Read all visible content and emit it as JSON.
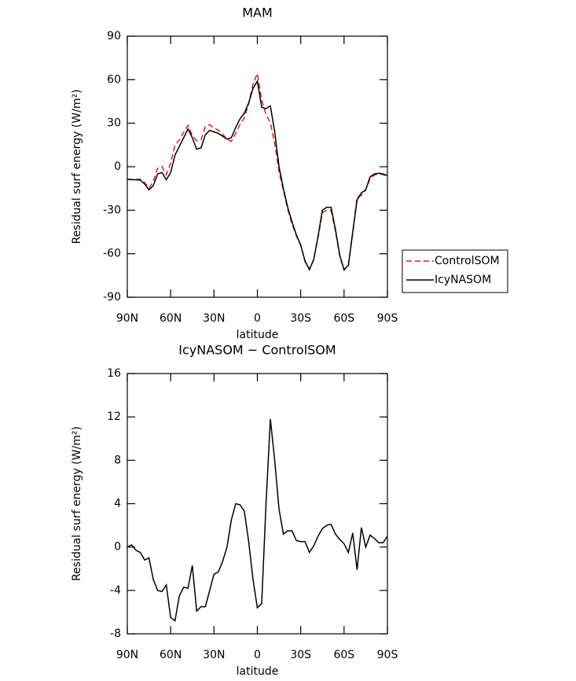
{
  "chart_data": [
    {
      "type": "line",
      "title": "MAM",
      "x_label": "latitude",
      "y_label": "Residual surf energy (W/m²)",
      "x": [
        90,
        87,
        84,
        81,
        78,
        75,
        72,
        69,
        66,
        63,
        60,
        57,
        54,
        51,
        48,
        45,
        42,
        39,
        36,
        33,
        30,
        27,
        24,
        21,
        18,
        15,
        12,
        9,
        6,
        3,
        0,
        -3,
        -6,
        -9,
        -12,
        -15,
        -18,
        -21,
        -24,
        -27,
        -30,
        -33,
        -36,
        -39,
        -42,
        -45,
        -48,
        -51,
        -54,
        -57,
        -60,
        -63,
        -66,
        -69,
        -72,
        -75,
        -78,
        -81,
        -84,
        -87,
        -90
      ],
      "series": [
        {
          "name": "ControlSOM",
          "color": "#e41a1c",
          "line_style": "dashed",
          "values": [
            -8.7,
            -9,
            -8.7,
            -8.7,
            -10.8,
            -15,
            -10,
            -1,
            0.1,
            -5.5,
            2.5,
            14.8,
            18.5,
            23.7,
            28.5,
            21.7,
            17.9,
            18.5,
            27.5,
            29,
            26.5,
            25.3,
            22.3,
            19,
            17.5,
            23,
            29.1,
            33.7,
            43.5,
            57,
            64.3,
            46.2,
            36,
            30.2,
            16,
            -3.5,
            -16.2,
            -29.5,
            -39.5,
            -47.6,
            -54.5,
            -65.5,
            -70.5,
            -64.1,
            -49,
            -31.7,
            -30,
            -30.1,
            -44.2,
            -61.7,
            -71.3,
            -67.5,
            -46.3,
            -20.9,
            -19.8,
            -16,
            -8.1,
            -5.8,
            -4.9,
            -5.4,
            -7
          ]
        },
        {
          "name": "IcyNASOM",
          "color": "#000000",
          "line_style": "solid",
          "values": [
            -8.7,
            -8.8,
            -9,
            -9.2,
            -12,
            -16,
            -13,
            -5,
            -4,
            -9,
            -4,
            8,
            14,
            20,
            26,
            20,
            12,
            13,
            22,
            25,
            24,
            23,
            21,
            19,
            20,
            27,
            33,
            37,
            44,
            54,
            59,
            41,
            40,
            42,
            24,
            0,
            -15,
            -28,
            -38,
            -47,
            -54,
            -65,
            -71,
            -64,
            -48,
            -30,
            -28,
            -28,
            -43,
            -61,
            -71,
            -68,
            -45,
            -23,
            -18,
            -16,
            -7,
            -5,
            -4.5,
            -5,
            -6
          ]
        }
      ],
      "xlim": [
        90,
        -90
      ],
      "xticks": [
        {
          "value": 90,
          "label": "90N"
        },
        {
          "value": 60,
          "label": "60N"
        },
        {
          "value": 30,
          "label": "30N"
        },
        0,
        {
          "value": -30,
          "label": "30S"
        },
        {
          "value": -60,
          "label": "60S"
        },
        {
          "value": -90,
          "label": "90S"
        }
      ],
      "ylim": [
        -90,
        90
      ],
      "yticks": [
        -90,
        -60,
        -30,
        0,
        30,
        60,
        90
      ],
      "legend": "right"
    },
    {
      "type": "line",
      "title": "IcyNASOM − ControlSOM",
      "x_label": "latitude",
      "y_label": "Residual surf energy (W/m²)",
      "x": [
        90,
        87,
        84,
        81,
        78,
        75,
        72,
        69,
        66,
        63,
        60,
        57,
        54,
        51,
        48,
        45,
        42,
        39,
        36,
        33,
        30,
        27,
        24,
        21,
        18,
        15,
        12,
        9,
        6,
        3,
        0,
        -3,
        -6,
        -9,
        -12,
        -15,
        -18,
        -21,
        -24,
        -27,
        -30,
        -33,
        -36,
        -39,
        -42,
        -45,
        -48,
        -51,
        -54,
        -57,
        -60,
        -63,
        -66,
        -69,
        -72,
        -75,
        -78,
        -81,
        -84,
        -87,
        -90
      ],
      "values": [
        0,
        0.2,
        -0.3,
        -0.5,
        -1.2,
        -1,
        -3,
        -4,
        -4.1,
        -3.5,
        -6.5,
        -6.8,
        -4.5,
        -3.7,
        -3.8,
        -1.7,
        -5.9,
        -5.5,
        -5.5,
        -4,
        -2.5,
        -2.3,
        -1.3,
        0,
        2.5,
        4,
        3.9,
        3.3,
        0.5,
        -3,
        -5.6,
        -5.2,
        4,
        11.8,
        8,
        3.5,
        1.2,
        1.5,
        1.5,
        0.6,
        0.5,
        0.5,
        -0.5,
        0.1,
        1,
        1.7,
        2,
        2.1,
        1.2,
        0.7,
        0.3,
        -0.5,
        1.3,
        -2.1,
        1.8,
        0,
        1.1,
        0.8,
        0.4,
        0.4,
        1
      ],
      "color": "#000000",
      "xlim": [
        90,
        -90
      ],
      "xticks": [
        {
          "value": 90,
          "label": "90N"
        },
        {
          "value": 60,
          "label": "60N"
        },
        {
          "value": 30,
          "label": "30N"
        },
        0,
        {
          "value": -30,
          "label": "30S"
        },
        {
          "value": -60,
          "label": "60S"
        },
        {
          "value": -90,
          "label": "90S"
        }
      ],
      "ylim": [
        -8,
        16
      ],
      "yticks": [
        -8,
        -4,
        0,
        4,
        8,
        12,
        16
      ]
    }
  ]
}
